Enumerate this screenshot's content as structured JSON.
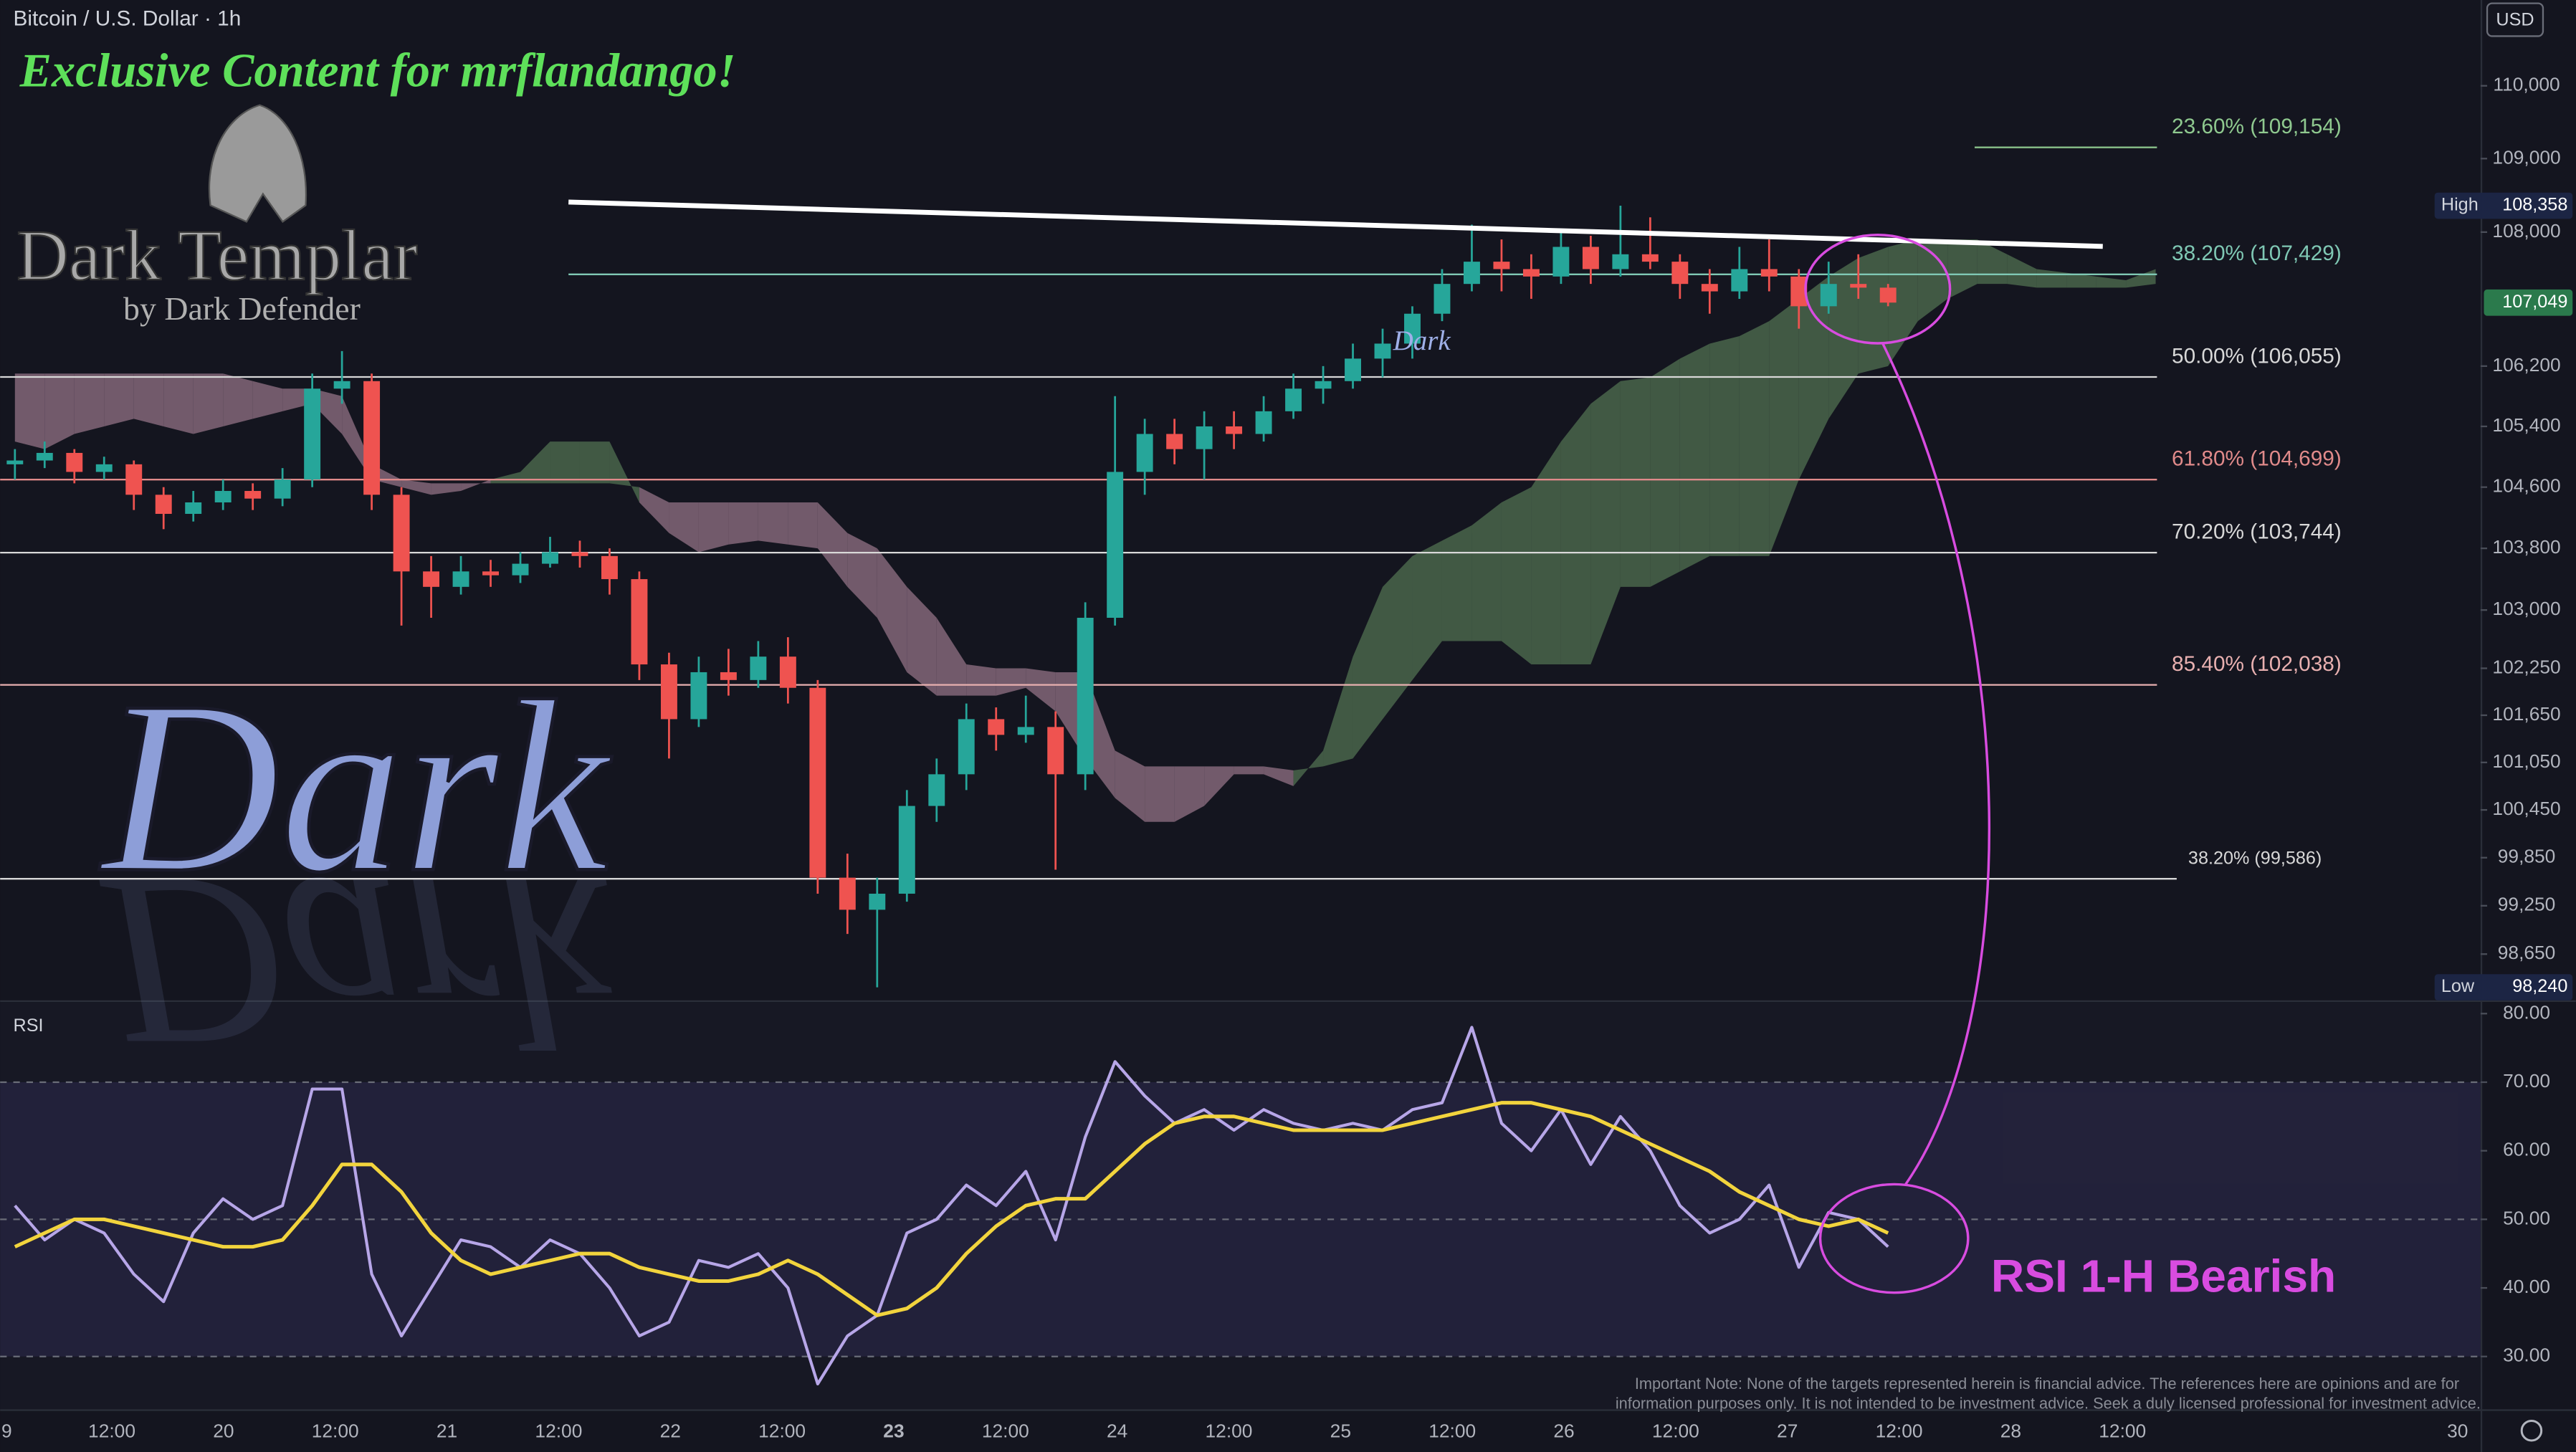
{
  "header": {
    "symbol": "Bitcoin / U.S. Dollar · 1h",
    "currency": "USD"
  },
  "overlay": {
    "banner": "Exclusive Content for mrflandango!",
    "logo_title": "Dark Templar",
    "logo_subtitle": "by Dark Defender",
    "watermark": "Dark",
    "tag": "Dark"
  },
  "footer": {
    "lines": [
      "Important Note: None of the targets represented herein is financial advice. The references here are opinions and are for",
      "information purposes only. It is not intended to be investment advice. Seek a duly licensed professional for investment advice."
    ]
  },
  "chart_data": [
    {
      "type": "candlestick",
      "log_scale": true,
      "up_color": "#26a69a",
      "down_color": "#ef5350",
      "ylim": [
        98100,
        111190
      ],
      "yticks": [
        {
          "value": 110000,
          "label": "110,000"
        },
        {
          "value": 109000,
          "label": "109,000"
        },
        {
          "value": 108000,
          "label": "108,000"
        },
        {
          "value": 106200,
          "label": "106,200"
        },
        {
          "value": 105400,
          "label": "105,400"
        },
        {
          "value": 104600,
          "label": "104,600"
        },
        {
          "value": 103800,
          "label": "103,800"
        },
        {
          "value": 103000,
          "label": "103,000"
        },
        {
          "value": 102250,
          "label": "102,250"
        },
        {
          "value": 101650,
          "label": "101,650"
        },
        {
          "value": 101050,
          "label": "101,050"
        },
        {
          "value": 100450,
          "label": "100,450"
        },
        {
          "value": 99850,
          "label": "99,850"
        },
        {
          "value": 99250,
          "label": "99,250"
        },
        {
          "value": 98650,
          "label": "98,650"
        }
      ],
      "fib_levels": [
        {
          "value": 109154,
          "label": "23.60% (109,154)",
          "color": "#8fc98f"
        },
        {
          "value": 107429,
          "label": "38.20% (107,429)",
          "color": "#7fc8b4"
        },
        {
          "value": 106055,
          "label": "50.00% (106,055)",
          "color": "#d8d8d8"
        },
        {
          "value": 104699,
          "label": "61.80% (104,699)",
          "color": "#e08a8a"
        },
        {
          "value": 103744,
          "label": "70.20% (103,744)",
          "color": "#d8d8d8"
        },
        {
          "value": 102038,
          "label": "85.40% (102,038)",
          "color": "#e8b0b0"
        },
        {
          "value": 99586,
          "label": "38.20% (99,586)",
          "color": "#d8d8d8"
        }
      ],
      "high_text": "High",
      "high": {
        "value": 108358,
        "label": "108,358"
      },
      "last": {
        "value": 107049,
        "label": "107,049"
      },
      "low_text": "Low",
      "low": {
        "value": 98240,
        "label": "98,240"
      },
      "ohlc": [
        [
          104900,
          105100,
          104700,
          104950
        ],
        [
          104950,
          105200,
          104850,
          105050
        ],
        [
          105050,
          105100,
          104650,
          104800
        ],
        [
          104800,
          105000,
          104700,
          104900
        ],
        [
          104900,
          104950,
          104300,
          104500
        ],
        [
          104500,
          104600,
          104050,
          104250
        ],
        [
          104250,
          104550,
          104150,
          104400
        ],
        [
          104400,
          104700,
          104300,
          104550
        ],
        [
          104550,
          104650,
          104300,
          104450
        ],
        [
          104450,
          104850,
          104350,
          104700
        ],
        [
          104700,
          106100,
          104600,
          105900
        ],
        [
          105900,
          106400,
          105700,
          106000
        ],
        [
          106000,
          106100,
          104300,
          104500
        ],
        [
          104500,
          104600,
          102800,
          103500
        ],
        [
          103500,
          103700,
          102900,
          103300
        ],
        [
          103300,
          103700,
          103200,
          103500
        ],
        [
          103500,
          103650,
          103300,
          103450
        ],
        [
          103450,
          103750,
          103350,
          103600
        ],
        [
          103600,
          103950,
          103550,
          103750
        ],
        [
          103750,
          103900,
          103550,
          103700
        ],
        [
          103700,
          103800,
          103200,
          103400
        ],
        [
          103400,
          103500,
          102100,
          102300
        ],
        [
          102300,
          102450,
          101100,
          101600
        ],
        [
          101600,
          102400,
          101500,
          102200
        ],
        [
          102200,
          102500,
          101900,
          102100
        ],
        [
          102100,
          102600,
          102000,
          102400
        ],
        [
          102400,
          102650,
          101800,
          102000
        ],
        [
          102000,
          102100,
          99400,
          99600
        ],
        [
          99600,
          99900,
          98900,
          99200
        ],
        [
          99200,
          99600,
          98240,
          99400
        ],
        [
          99400,
          100700,
          99300,
          100500
        ],
        [
          100500,
          101100,
          100300,
          100900
        ],
        [
          100900,
          101800,
          100700,
          101600
        ],
        [
          101600,
          101750,
          101200,
          101400
        ],
        [
          101400,
          101900,
          101300,
          101500
        ],
        [
          101500,
          101700,
          99700,
          100900
        ],
        [
          100900,
          103100,
          100700,
          102900
        ],
        [
          102900,
          105800,
          102800,
          104800
        ],
        [
          104800,
          105500,
          104500,
          105300
        ],
        [
          105300,
          105500,
          104900,
          105100
        ],
        [
          105100,
          105600,
          104700,
          105400
        ],
        [
          105400,
          105600,
          105100,
          105300
        ],
        [
          105300,
          105800,
          105200,
          105600
        ],
        [
          105600,
          106100,
          105500,
          105900
        ],
        [
          105900,
          106200,
          105700,
          106000
        ],
        [
          106000,
          106500,
          105900,
          106300
        ],
        [
          106300,
          106700,
          106050,
          106500
        ],
        [
          106500,
          107000,
          106300,
          106900
        ],
        [
          106900,
          107500,
          106800,
          107300
        ],
        [
          107300,
          108100,
          107200,
          107600
        ],
        [
          107600,
          107900,
          107200,
          107500
        ],
        [
          107500,
          107700,
          107100,
          107400
        ],
        [
          107400,
          108000,
          107300,
          107800
        ],
        [
          107800,
          107950,
          107300,
          107500
        ],
        [
          107500,
          108358,
          107400,
          107700
        ],
        [
          107700,
          108200,
          107500,
          107600
        ],
        [
          107600,
          107700,
          107100,
          107300
        ],
        [
          107300,
          107500,
          106900,
          107200
        ],
        [
          107200,
          107800,
          107100,
          107500
        ],
        [
          107500,
          107900,
          107200,
          107400
        ],
        [
          107400,
          107500,
          106700,
          107000
        ],
        [
          107000,
          107600,
          106900,
          107300
        ],
        [
          107300,
          107700,
          107100,
          107250
        ],
        [
          107250,
          107300,
          107000,
          107049
        ]
      ],
      "cloud": {
        "up_color": "#4c6a4e",
        "down_color": "#8a6b7e",
        "span_a": [
          105200,
          105100,
          105300,
          105400,
          105500,
          105400,
          105300,
          105400,
          105500,
          105600,
          105700,
          105300,
          104700,
          104600,
          104500,
          104550,
          104700,
          104800,
          105200,
          105200,
          105200,
          104400,
          104000,
          103750,
          103850,
          103900,
          103850,
          103800,
          103300,
          102900,
          102200,
          101900,
          101900,
          101900,
          102000,
          101700,
          101100,
          100600,
          100300,
          100300,
          100500,
          100900,
          100900,
          100750,
          101200,
          102400,
          103300,
          103700,
          103900,
          104100,
          104400,
          104600,
          105200,
          105700,
          106000,
          106050,
          106300,
          106500,
          106600,
          106800,
          107100,
          107400,
          107650,
          107800,
          107900,
          107900,
          107900,
          107700,
          107500,
          107450,
          107400,
          107350,
          107500
        ],
        "span_b": [
          106100,
          106100,
          106100,
          106100,
          106100,
          106100,
          106100,
          106100,
          106000,
          105900,
          105900,
          105800,
          104900,
          104700,
          104650,
          104650,
          104650,
          104650,
          104650,
          104650,
          104650,
          104600,
          104400,
          104400,
          104400,
          104400,
          104400,
          104400,
          104000,
          103800,
          103300,
          102900,
          102300,
          102250,
          102250,
          102200,
          102200,
          101200,
          101000,
          101000,
          101000,
          101000,
          101000,
          100950,
          101000,
          101100,
          101600,
          102100,
          102600,
          102600,
          102600,
          102300,
          102300,
          102300,
          103300,
          103300,
          103500,
          103700,
          103700,
          103700,
          104700,
          105500,
          106100,
          106200,
          106800,
          107100,
          107300,
          107300,
          107250,
          107250,
          107250,
          107250,
          107300
        ]
      }
    },
    {
      "type": "line",
      "title": "RSI",
      "annotation": "RSI 1-H Bearish",
      "ylim": [
        22.3,
        81.7
      ],
      "yticks": [
        {
          "value": 80,
          "label": "80.00"
        },
        {
          "value": 70,
          "label": "70.00"
        },
        {
          "value": 60,
          "label": "60.00"
        },
        {
          "value": 50,
          "label": "50.00"
        },
        {
          "value": 40,
          "label": "40.00"
        },
        {
          "value": 30,
          "label": "30.00"
        }
      ],
      "band": [
        30,
        70
      ],
      "levels": [
        70,
        50,
        30
      ],
      "series": [
        {
          "color": "#b7a6e8",
          "values": [
            52,
            47,
            50,
            48,
            42,
            38,
            48,
            53,
            50,
            52,
            69,
            69,
            42,
            33,
            40,
            47,
            46,
            43,
            47,
            45,
            40,
            33,
            35,
            44,
            43,
            45,
            40,
            26,
            33,
            36,
            48,
            50,
            55,
            52,
            57,
            47,
            62,
            73,
            68,
            64,
            66,
            63,
            66,
            64,
            63,
            64,
            63,
            66,
            67,
            78,
            64,
            60,
            66,
            58,
            65,
            60,
            52,
            48,
            50,
            55,
            43,
            51,
            50,
            46
          ]
        },
        {
          "color": "#f2d43d",
          "values": [
            46,
            48,
            50,
            50,
            49,
            48,
            47,
            46,
            46,
            47,
            52,
            58,
            58,
            54,
            48,
            44,
            42,
            43,
            44,
            45,
            45,
            43,
            42,
            41,
            41,
            42,
            44,
            42,
            39,
            36,
            37,
            40,
            45,
            49,
            52,
            53,
            53,
            57,
            61,
            64,
            65,
            65,
            64,
            63,
            63,
            63,
            63,
            64,
            65,
            66,
            67,
            67,
            66,
            65,
            63,
            61,
            59,
            57,
            54,
            52,
            50,
            49,
            50,
            48
          ]
        }
      ],
      "x_labels": [
        "9",
        "12:00",
        "20",
        "12:00",
        "21",
        "12:00",
        "22",
        "12:00",
        "23",
        "12:00",
        "24",
        "12:00",
        "25",
        "12:00",
        "26",
        "12:00",
        "27",
        "12:00",
        "28",
        "12:00",
        null,
        null,
        "30"
      ]
    }
  ]
}
